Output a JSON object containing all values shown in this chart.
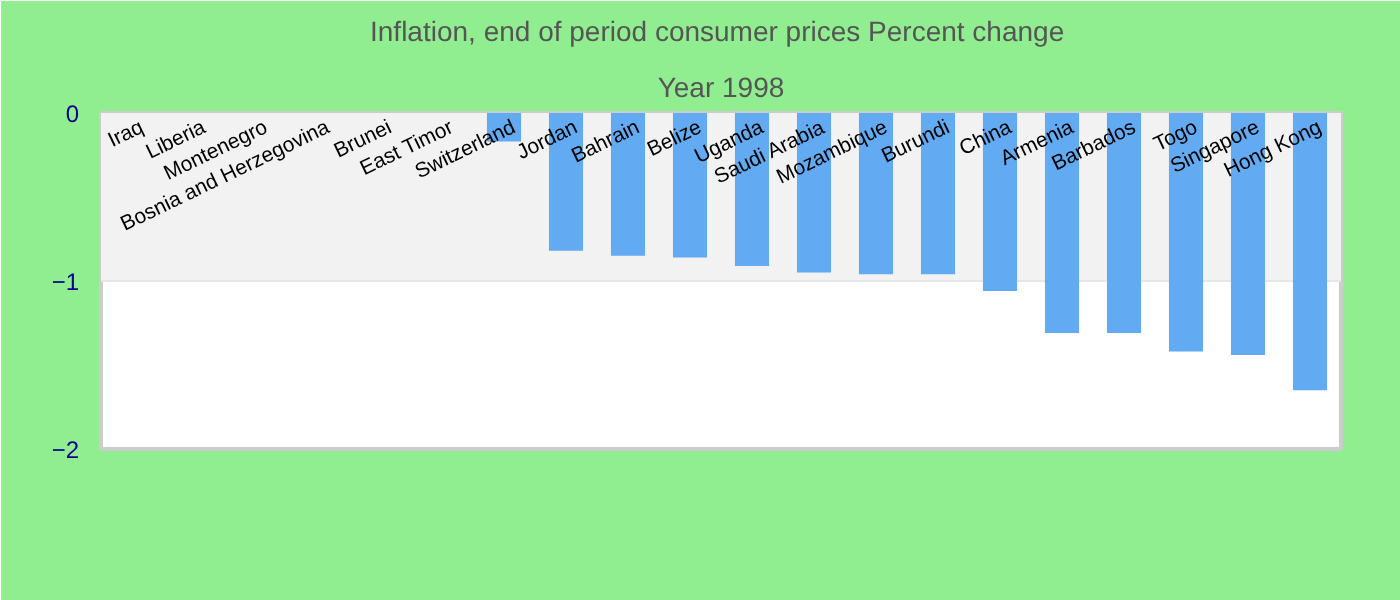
{
  "chart_data": {
    "type": "bar",
    "title": "Inflation, end of period consumer prices  Percent change",
    "subtitle": "Year 1998",
    "categories": [
      "Iraq",
      "Liberia",
      "Montenegro",
      "Bosnia and Herzegovina",
      "Brunei",
      "East Timor",
      "Switzerland",
      "Jordan",
      "Bahrain",
      "Belize",
      "Uganda",
      "Saudi Arabia",
      "Mozambique",
      "Burundi",
      "China",
      "Armenia",
      "Barbados",
      "Togo",
      "Singapore",
      "Hong Kong"
    ],
    "values": [
      null,
      null,
      null,
      null,
      null,
      null,
      -0.17,
      -0.82,
      -0.85,
      -0.86,
      -0.91,
      -0.95,
      -0.96,
      -0.96,
      -1.06,
      -1.31,
      -1.31,
      -1.42,
      -1.44,
      -1.65
    ],
    "color": "#62aaf2",
    "ylim": [
      -2,
      0
    ],
    "yticks": [
      -2,
      -1,
      0
    ],
    "grid": "y"
  }
}
